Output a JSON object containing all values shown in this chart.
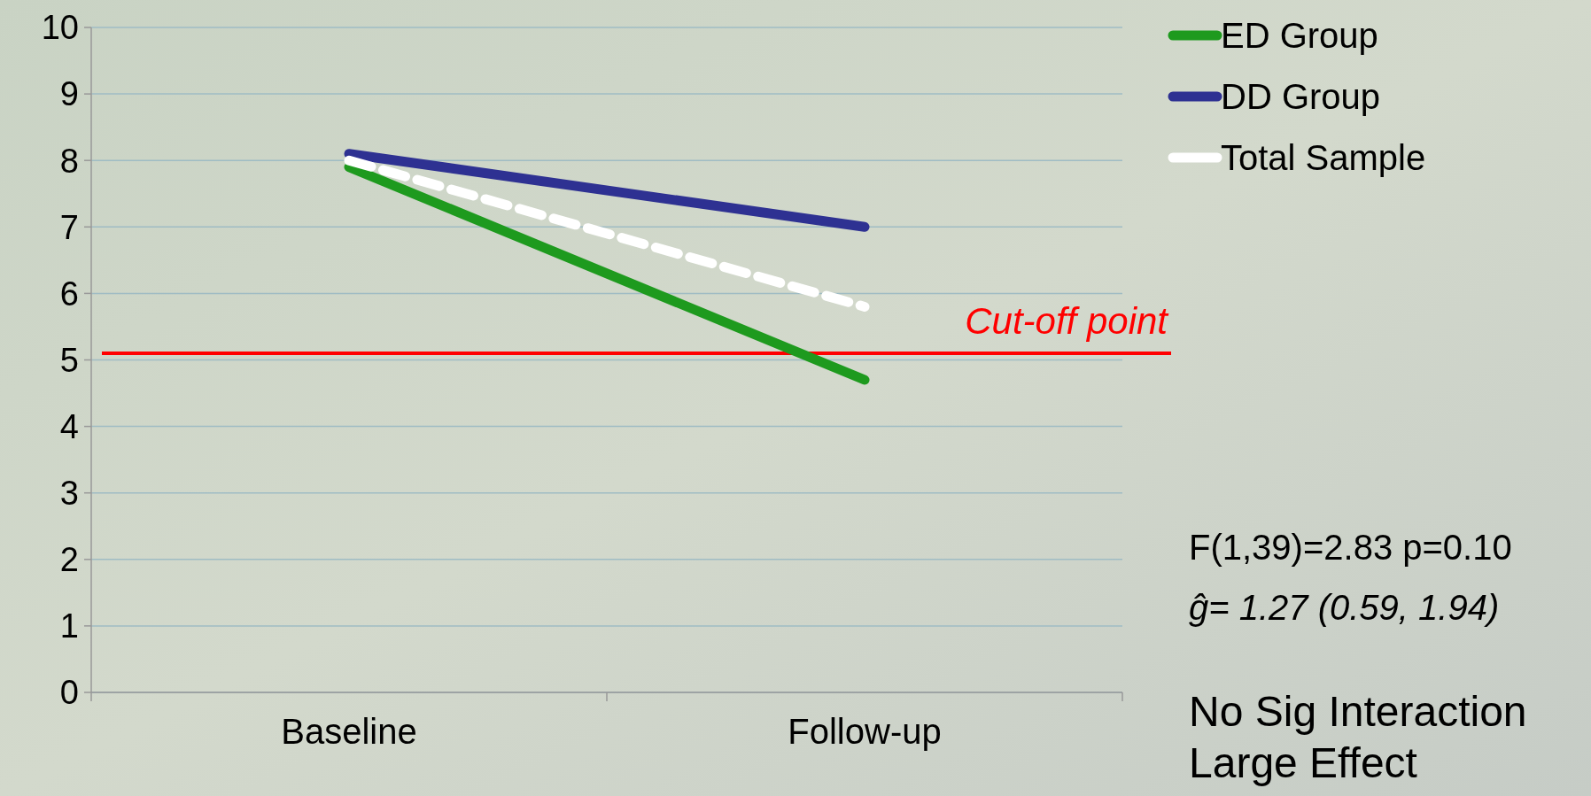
{
  "chart_data": {
    "type": "line",
    "categories": [
      "Baseline",
      "Follow-up"
    ],
    "series": [
      {
        "name": "ED Group",
        "color": "#1e9a1e",
        "values": [
          7.9,
          4.7
        ]
      },
      {
        "name": "DD Group",
        "color": "#2e3192",
        "values": [
          8.1,
          7.0
        ]
      },
      {
        "name": "Total Sample",
        "color": "#ffffff",
        "values": [
          8.0,
          5.8
        ],
        "line_style": "dashed"
      }
    ],
    "ylim": [
      0,
      10
    ],
    "yticks": [
      0,
      1,
      2,
      3,
      4,
      5,
      6,
      7,
      8,
      9,
      10
    ],
    "grid": "y",
    "legend": "top right",
    "ref_lines": [
      {
        "axis": "y",
        "value": 5.1,
        "label": "Cut-off point",
        "color": "#ff0000"
      }
    ],
    "annotations": [
      "F(1,39)=2.83 p=0.10",
      "ĝ= 1.27  (0.59, 1.94)",
      "No Sig Interaction",
      "Large Effect"
    ]
  }
}
